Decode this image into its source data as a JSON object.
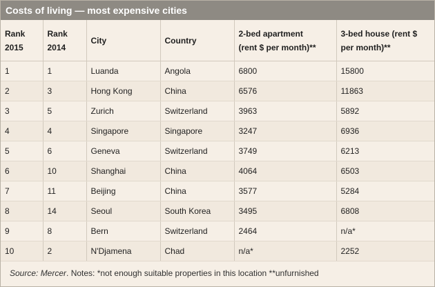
{
  "title": "Costs of living — most expensive cities",
  "headers": {
    "rank_2015": "Rank\n2015",
    "rank_2014": "Rank\n2014",
    "city": "City",
    "country": "Country",
    "apartment": "2-bed apartment\n(rent $ per month)**",
    "house": "3-bed house (rent $\nper month)**"
  },
  "rows": [
    {
      "rank_2015": "1",
      "rank_2014": "1",
      "city": "Luanda",
      "country": "Angola",
      "apartment": "6800",
      "house": "15800"
    },
    {
      "rank_2015": "2",
      "rank_2014": "3",
      "city": "Hong Kong",
      "country": "China",
      "apartment": "6576",
      "house": "11863"
    },
    {
      "rank_2015": "3",
      "rank_2014": "5",
      "city": "Zurich",
      "country": "Switzerland",
      "apartment": "3963",
      "house": "5892"
    },
    {
      "rank_2015": "4",
      "rank_2014": "4",
      "city": "Singapore",
      "country": "Singapore",
      "apartment": "3247",
      "house": "6936"
    },
    {
      "rank_2015": "5",
      "rank_2014": "6",
      "city": "Geneva",
      "country": "Switzerland",
      "apartment": "3749",
      "house": "6213"
    },
    {
      "rank_2015": "6",
      "rank_2014": "10",
      "city": "Shanghai",
      "country": "China",
      "apartment": "4064",
      "house": "6503"
    },
    {
      "rank_2015": "7",
      "rank_2014": "11",
      "city": "Beijing",
      "country": "China",
      "apartment": "3577",
      "house": "5284"
    },
    {
      "rank_2015": "8",
      "rank_2014": "14",
      "city": "Seoul",
      "country": "South Korea",
      "apartment": "3495",
      "house": "6808"
    },
    {
      "rank_2015": "9",
      "rank_2014": "8",
      "city": "Bern",
      "country": "Switzerland",
      "apartment": "2464",
      "house": "n/a*"
    },
    {
      "rank_2015": "10",
      "rank_2014": "2",
      "city": "N'Djamena",
      "country": "Chad",
      "apartment": "n/a*",
      "house": "2252"
    }
  ],
  "notes": {
    "source_label": "Source: Mercer",
    "text": ". Notes: *not enough suitable properties in this location **unfurnished"
  },
  "colors": {
    "title_bar": "#8e8a83",
    "background": "#f6efe6",
    "alt_row": "#f1e9de",
    "border": "#d1c9bd"
  }
}
